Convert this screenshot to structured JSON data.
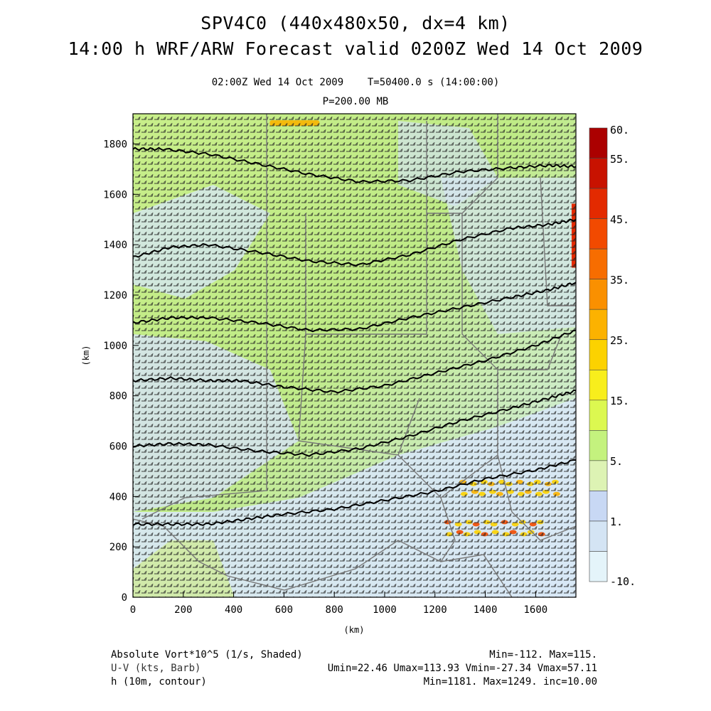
{
  "header": {
    "title": "SPV4C0 (440x480x50, dx=4 km)",
    "forecast": "14:00 h WRF/ARW Forecast valid 0200Z Wed 14 Oct 2009",
    "valid_time": "02:00Z Wed 14 Oct 2009",
    "sim_time": "T=50400.0 s (14:00:00)",
    "level": "P=200.00 MB"
  },
  "chart_data": {
    "type": "heatmap",
    "xlabel": "(km)",
    "ylabel": "(km)",
    "x_ticks": [
      "0",
      "200",
      "400",
      "600",
      "800",
      "1000",
      "1200",
      "1400",
      "1600"
    ],
    "y_ticks": [
      "0",
      "200",
      "400",
      "600",
      "800",
      "1000",
      "1200",
      "1400",
      "1600",
      "1800"
    ],
    "xlim": [
      0,
      1760
    ],
    "ylim": [
      0,
      1920
    ],
    "colorbar": {
      "labels": [
        "60.",
        "55.",
        "45.",
        "35.",
        "25.",
        "15.",
        "5.",
        "1.",
        "-10."
      ],
      "colors": [
        "#ab0000",
        "#c81200",
        "#e32a00",
        "#f24a00",
        "#f76d00",
        "#fa9000",
        "#fcb200",
        "#fcd200",
        "#f8ee1c",
        "#dcf850",
        "#c4f27e",
        "#ddf3b4",
        "#c8d8f4",
        "#d4e4f4",
        "#e4f4fa"
      ]
    },
    "contours": [
      {
        "points": [
          [
            0,
            1780
          ],
          [
            120,
            1780
          ],
          [
            300,
            1760
          ],
          [
            500,
            1720
          ],
          [
            700,
            1680
          ],
          [
            900,
            1650
          ],
          [
            1100,
            1655
          ],
          [
            1300,
            1690
          ],
          [
            1500,
            1705
          ],
          [
            1650,
            1715
          ],
          [
            1760,
            1710
          ]
        ]
      },
      {
        "points": [
          [
            0,
            1350
          ],
          [
            150,
            1390
          ],
          [
            300,
            1400
          ],
          [
            500,
            1370
          ],
          [
            700,
            1335
          ],
          [
            900,
            1320
          ],
          [
            1100,
            1360
          ],
          [
            1300,
            1420
          ],
          [
            1500,
            1465
          ],
          [
            1650,
            1480
          ],
          [
            1760,
            1500
          ]
        ]
      },
      {
        "points": [
          [
            0,
            1090
          ],
          [
            150,
            1110
          ],
          [
            300,
            1110
          ],
          [
            500,
            1090
          ],
          [
            700,
            1060
          ],
          [
            900,
            1065
          ],
          [
            1100,
            1110
          ],
          [
            1300,
            1150
          ],
          [
            1500,
            1190
          ],
          [
            1650,
            1220
          ],
          [
            1760,
            1250
          ]
        ]
      },
      {
        "points": [
          [
            0,
            860
          ],
          [
            150,
            870
          ],
          [
            300,
            860
          ],
          [
            430,
            860
          ],
          [
            600,
            835
          ],
          [
            800,
            815
          ],
          [
            1000,
            840
          ],
          [
            1200,
            890
          ],
          [
            1400,
            940
          ],
          [
            1600,
            1000
          ],
          [
            1760,
            1060
          ]
        ]
      },
      {
        "points": [
          [
            0,
            600
          ],
          [
            150,
            610
          ],
          [
            300,
            605
          ],
          [
            500,
            580
          ],
          [
            700,
            565
          ],
          [
            900,
            590
          ],
          [
            1100,
            640
          ],
          [
            1300,
            700
          ],
          [
            1500,
            750
          ],
          [
            1650,
            790
          ],
          [
            1760,
            820
          ]
        ]
      },
      {
        "points": [
          [
            0,
            290
          ],
          [
            150,
            290
          ],
          [
            300,
            290
          ],
          [
            450,
            310
          ],
          [
            600,
            330
          ],
          [
            800,
            350
          ],
          [
            1000,
            385
          ],
          [
            1200,
            420
          ],
          [
            1400,
            470
          ],
          [
            1600,
            505
          ],
          [
            1760,
            545
          ]
        ]
      }
    ],
    "warm_patches": [
      {
        "x": 600,
        "y": 1880,
        "level": "25."
      },
      {
        "x": 1420,
        "y": 270,
        "level": "35."
      },
      {
        "x": 1480,
        "y": 430,
        "level": "25."
      },
      {
        "x": 1760,
        "y": 1450,
        "level": "45."
      }
    ]
  },
  "footer": {
    "field1": "Absolute Vort*10^5 (1/s, Shaded)",
    "field1_stats": "Min=-112. Max=115.",
    "field2": "U-V (kts, Barb)",
    "field2_stats": "Umin=22.46 Umax=113.93 Vmin=-27.34 Vmax=57.11",
    "field3": "h (10m, contour)",
    "field3_stats": "Min=1181. Max=1249. inc=10.00"
  }
}
